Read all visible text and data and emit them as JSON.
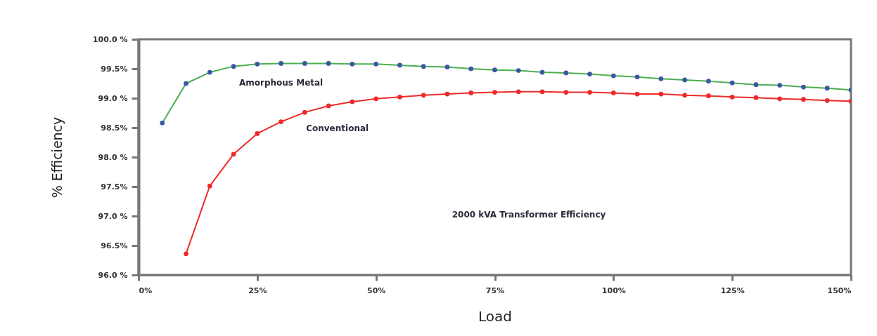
{
  "chart_data": {
    "type": "line",
    "xlabel": "Load",
    "ylabel": "% Efficiency",
    "xlim": [
      0,
      150
    ],
    "ylim": [
      96,
      100
    ],
    "xticks": [
      {
        "value": 0,
        "label": "0%"
      },
      {
        "value": 25,
        "label": "25%"
      },
      {
        "value": 50,
        "label": "50%"
      },
      {
        "value": 75,
        "label": "75%"
      },
      {
        "value": 100,
        "label": "100%"
      },
      {
        "value": 125,
        "label": "125%"
      },
      {
        "value": 150,
        "label": "150%"
      }
    ],
    "yticks": [
      {
        "value": 96,
        "label": "96.0 %"
      },
      {
        "value": 96.5,
        "label": "96.5%"
      },
      {
        "value": 97,
        "label": "97.0 %"
      },
      {
        "value": 97.5,
        "label": "97.5%"
      },
      {
        "value": 98,
        "label": "98.0 %"
      },
      {
        "value": 98.5,
        "label": "98.5%"
      },
      {
        "value": 99,
        "label": "99.0 %"
      },
      {
        "value": 99.5,
        "label": "99.5%"
      },
      {
        "value": 100,
        "label": "100.0 %"
      }
    ],
    "grid": false,
    "marker": "circle",
    "annotations": [
      "2000 kVA Transformer Efficiency"
    ],
    "series": [
      {
        "name": "Amorphous Metal",
        "marker": "none",
        "color": "#4caf50",
        "x": [
          5,
          10,
          15,
          20,
          25,
          30,
          35,
          40,
          45,
          50,
          55,
          60,
          65,
          70,
          75,
          80,
          85,
          90,
          95,
          100,
          105,
          110,
          115,
          120,
          125,
          130,
          135,
          140,
          145,
          150
        ],
        "values": [
          98.58,
          99.25,
          99.44,
          99.54,
          99.58,
          99.59,
          99.59,
          99.59,
          99.58,
          99.58,
          99.56,
          99.54,
          99.53,
          99.5,
          99.48,
          99.47,
          99.44,
          99.43,
          99.41,
          99.38,
          99.36,
          99.33,
          99.31,
          99.29,
          99.26,
          99.23,
          99.22,
          99.19,
          99.17,
          99.14
        ]
      },
      {
        "type": "scatter",
        "color": "#3a56a5",
        "x": [
          5,
          10,
          15,
          20,
          25,
          30,
          35,
          40,
          45,
          50,
          55,
          60,
          65,
          70,
          75,
          80,
          85,
          90,
          95,
          100,
          105,
          110,
          115,
          120,
          125,
          130,
          135,
          140,
          145,
          150
        ],
        "values": [
          98.58,
          99.25,
          99.44,
          99.54,
          99.58,
          99.59,
          99.59,
          99.59,
          99.58,
          99.58,
          99.56,
          99.54,
          99.53,
          99.5,
          99.48,
          99.47,
          99.44,
          99.43,
          99.41,
          99.38,
          99.36,
          99.33,
          99.31,
          99.29,
          99.26,
          99.23,
          99.22,
          99.19,
          99.17,
          99.14
        ]
      },
      {
        "name": "Conventional",
        "color": "#ee2a2a",
        "x": [
          10,
          15,
          20,
          25,
          30,
          35,
          40,
          45,
          50,
          55,
          60,
          65,
          70,
          75,
          80,
          85,
          90,
          95,
          100,
          105,
          110,
          115,
          120,
          125,
          130,
          135,
          140,
          145,
          150
        ],
        "values": [
          96.36,
          97.51,
          98.05,
          98.4,
          98.6,
          98.76,
          98.87,
          98.94,
          98.99,
          99.02,
          99.05,
          99.07,
          99.09,
          99.1,
          99.11,
          99.11,
          99.1,
          99.1,
          99.09,
          99.07,
          99.07,
          99.05,
          99.04,
          99.02,
          99.01,
          98.99,
          98.98,
          98.96,
          98.95
        ]
      }
    ]
  }
}
